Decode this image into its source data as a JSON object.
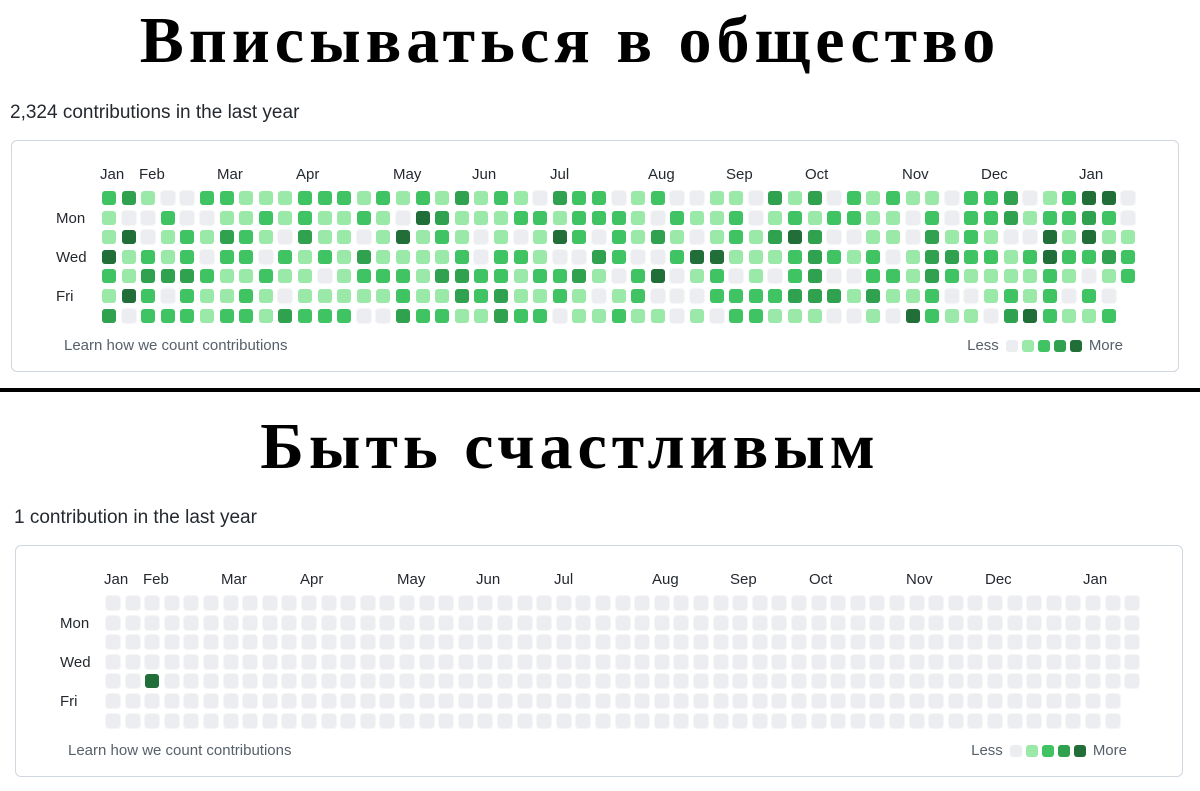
{
  "meme": {
    "top_caption": "Вписываться в общество",
    "bottom_caption": "Быть счастливым"
  },
  "colors": {
    "empty": "#ebedf0",
    "level1": "#9be9a8",
    "level2": "#40c463",
    "level3": "#30a14e",
    "level4": "#216e39",
    "border": "#d0d7de"
  },
  "panels": [
    {
      "summary": "2,324 contributions in the last year",
      "months": [
        "Jan",
        "Feb",
        "Mar",
        "Apr",
        "May",
        "Jun",
        "Jul",
        "Aug",
        "Sep",
        "Oct",
        "Nov",
        "Dec",
        "Jan"
      ],
      "days": [
        "Mon",
        "Wed",
        "Fri"
      ],
      "learn_link": "Learn how we count contributions",
      "legend": {
        "less": "Less",
        "more": "More"
      },
      "activity": "busy"
    },
    {
      "summary": "1 contribution in the last year",
      "months": [
        "Jan",
        "Feb",
        "Mar",
        "Apr",
        "May",
        "Jun",
        "Jul",
        "Aug",
        "Sep",
        "Oct",
        "Nov",
        "Dec",
        "Jan"
      ],
      "days": [
        "Mon",
        "Wed",
        "Fri"
      ],
      "learn_link": "Learn how we count contributions",
      "legend": {
        "less": "Less",
        "more": "More"
      },
      "activity": "single",
      "single_contribution": {
        "week": 2,
        "weekday": "Thu"
      }
    }
  ]
}
